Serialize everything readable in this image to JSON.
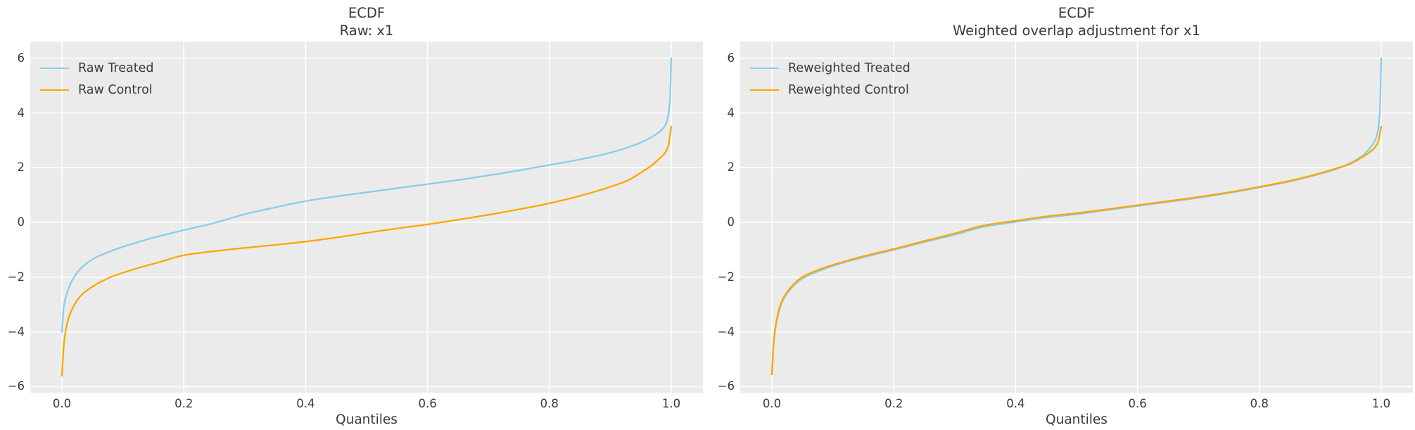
{
  "figure": {
    "background": "#ffffff",
    "axes_background": "#ebebeb",
    "grid_color": "#ffffff",
    "text_color": "#3a3a3a",
    "treated_color": "#87CEEB",
    "control_color": "#FFA500"
  },
  "chart_data": [
    {
      "type": "line",
      "title_line1": "ECDF",
      "title_line2": "Raw: x1",
      "xlabel": "Quantiles",
      "ylabel": "",
      "grid": true,
      "legend_position": "upper left",
      "x_ticks": [
        0.0,
        0.2,
        0.4,
        0.6,
        0.8,
        1.0
      ],
      "x_tick_labels": [
        "0.0",
        "0.2",
        "0.4",
        "0.6",
        "0.8",
        "1.0"
      ],
      "y_ticks": [
        6,
        4,
        2,
        0,
        -2,
        -4,
        -6
      ],
      "y_tick_labels": [
        "6",
        "4",
        "2",
        "0",
        "−2",
        "−4",
        "−6"
      ],
      "xlim": [
        -0.052,
        1.052
      ],
      "ylim": [
        -6.22,
        6.61
      ],
      "series": [
        {
          "name": "Raw Treated",
          "color": "#87CEEB",
          "points": [
            [
              0,
              -4.0
            ],
            [
              0.003,
              -3.1
            ],
            [
              0.008,
              -2.6
            ],
            [
              0.015,
              -2.2
            ],
            [
              0.03,
              -1.7
            ],
            [
              0.05,
              -1.35
            ],
            [
              0.08,
              -1.05
            ],
            [
              0.12,
              -0.75
            ],
            [
              0.16,
              -0.5
            ],
            [
              0.2,
              -0.28
            ],
            [
              0.25,
              -0.02
            ],
            [
              0.3,
              0.3
            ],
            [
              0.35,
              0.55
            ],
            [
              0.4,
              0.78
            ],
            [
              0.45,
              0.95
            ],
            [
              0.5,
              1.1
            ],
            [
              0.55,
              1.25
            ],
            [
              0.6,
              1.4
            ],
            [
              0.65,
              1.55
            ],
            [
              0.7,
              1.72
            ],
            [
              0.75,
              1.9
            ],
            [
              0.8,
              2.1
            ],
            [
              0.85,
              2.3
            ],
            [
              0.9,
              2.55
            ],
            [
              0.93,
              2.75
            ],
            [
              0.95,
              2.92
            ],
            [
              0.97,
              3.15
            ],
            [
              0.98,
              3.3
            ],
            [
              0.99,
              3.55
            ],
            [
              0.995,
              3.9
            ],
            [
              0.998,
              4.5
            ],
            [
              1,
              6.0
            ]
          ]
        },
        {
          "name": "Raw Control",
          "color": "#FFA500",
          "points": [
            [
              0,
              -5.6
            ],
            [
              0.003,
              -4.5
            ],
            [
              0.008,
              -3.75
            ],
            [
              0.015,
              -3.25
            ],
            [
              0.03,
              -2.7
            ],
            [
              0.05,
              -2.35
            ],
            [
              0.08,
              -2.0
            ],
            [
              0.12,
              -1.7
            ],
            [
              0.16,
              -1.45
            ],
            [
              0.2,
              -1.2
            ],
            [
              0.25,
              -1.05
            ],
            [
              0.3,
              -0.93
            ],
            [
              0.35,
              -0.82
            ],
            [
              0.4,
              -0.7
            ],
            [
              0.45,
              -0.55
            ],
            [
              0.5,
              -0.38
            ],
            [
              0.55,
              -0.22
            ],
            [
              0.6,
              -0.07
            ],
            [
              0.65,
              0.1
            ],
            [
              0.7,
              0.28
            ],
            [
              0.75,
              0.48
            ],
            [
              0.8,
              0.7
            ],
            [
              0.85,
              0.97
            ],
            [
              0.9,
              1.3
            ],
            [
              0.93,
              1.55
            ],
            [
              0.95,
              1.82
            ],
            [
              0.97,
              2.12
            ],
            [
              0.98,
              2.32
            ],
            [
              0.99,
              2.55
            ],
            [
              0.995,
              2.8
            ],
            [
              1,
              3.5
            ]
          ]
        }
      ]
    },
    {
      "type": "line",
      "title_line1": "ECDF",
      "title_line2": "Weighted overlap adjustment for x1",
      "xlabel": "Quantiles",
      "ylabel": "",
      "grid": true,
      "legend_position": "upper left",
      "x_ticks": [
        0.0,
        0.2,
        0.4,
        0.6,
        0.8,
        1.0
      ],
      "x_tick_labels": [
        "0.0",
        "0.2",
        "0.4",
        "0.6",
        "0.8",
        "1.0"
      ],
      "y_ticks": [
        6,
        4,
        2,
        0,
        -2,
        -4,
        -6
      ],
      "y_tick_labels": [
        "6",
        "4",
        "2",
        "0",
        "−2",
        "−4",
        "−6"
      ],
      "xlim": [
        -0.052,
        1.052
      ],
      "ylim": [
        -6.22,
        6.61
      ],
      "series": [
        {
          "name": "Reweighted Treated",
          "color": "#87CEEB",
          "points": [
            [
              0,
              -5.55
            ],
            [
              0.003,
              -4.4
            ],
            [
              0.008,
              -3.6
            ],
            [
              0.015,
              -3.0
            ],
            [
              0.03,
              -2.45
            ],
            [
              0.05,
              -2.05
            ],
            [
              0.08,
              -1.75
            ],
            [
              0.12,
              -1.45
            ],
            [
              0.16,
              -1.22
            ],
            [
              0.2,
              -1.0
            ],
            [
              0.25,
              -0.72
            ],
            [
              0.3,
              -0.45
            ],
            [
              0.35,
              -0.15
            ],
            [
              0.4,
              0.02
            ],
            [
              0.45,
              0.18
            ],
            [
              0.5,
              0.3
            ],
            [
              0.55,
              0.45
            ],
            [
              0.6,
              0.6
            ],
            [
              0.65,
              0.75
            ],
            [
              0.7,
              0.9
            ],
            [
              0.75,
              1.08
            ],
            [
              0.8,
              1.28
            ],
            [
              0.85,
              1.5
            ],
            [
              0.9,
              1.78
            ],
            [
              0.93,
              1.98
            ],
            [
              0.95,
              2.18
            ],
            [
              0.97,
              2.45
            ],
            [
              0.98,
              2.68
            ],
            [
              0.99,
              3.0
            ],
            [
              0.995,
              3.4
            ],
            [
              0.998,
              4.2
            ],
            [
              1,
              6.0
            ]
          ]
        },
        {
          "name": "Reweighted Control",
          "color": "#FFA500",
          "points": [
            [
              0,
              -5.55
            ],
            [
              0.003,
              -4.35
            ],
            [
              0.008,
              -3.55
            ],
            [
              0.015,
              -2.95
            ],
            [
              0.03,
              -2.4
            ],
            [
              0.05,
              -2.0
            ],
            [
              0.08,
              -1.7
            ],
            [
              0.12,
              -1.42
            ],
            [
              0.16,
              -1.18
            ],
            [
              0.2,
              -0.97
            ],
            [
              0.25,
              -0.68
            ],
            [
              0.3,
              -0.4
            ],
            [
              0.35,
              -0.1
            ],
            [
              0.4,
              0.06
            ],
            [
              0.45,
              0.22
            ],
            [
              0.5,
              0.34
            ],
            [
              0.55,
              0.48
            ],
            [
              0.6,
              0.63
            ],
            [
              0.65,
              0.78
            ],
            [
              0.7,
              0.93
            ],
            [
              0.75,
              1.1
            ],
            [
              0.8,
              1.3
            ],
            [
              0.85,
              1.52
            ],
            [
              0.9,
              1.8
            ],
            [
              0.93,
              2.0
            ],
            [
              0.95,
              2.15
            ],
            [
              0.97,
              2.4
            ],
            [
              0.98,
              2.55
            ],
            [
              0.99,
              2.75
            ],
            [
              0.995,
              2.95
            ],
            [
              1,
              3.5
            ]
          ]
        }
      ]
    }
  ]
}
